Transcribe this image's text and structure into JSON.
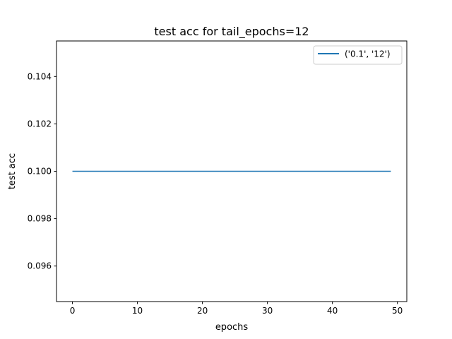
{
  "chart_data": {
    "type": "line",
    "title": "test acc for tail_epochs=12",
    "xlabel": "epochs",
    "ylabel": "test acc",
    "xlim": [
      -2.45,
      51.45
    ],
    "ylim": [
      0.0945,
      0.1055
    ],
    "xticks": [
      0,
      10,
      20,
      30,
      40,
      50
    ],
    "xtick_labels": [
      "0",
      "10",
      "20",
      "30",
      "40",
      "50"
    ],
    "yticks": [
      0.096,
      0.098,
      0.1,
      0.102,
      0.104
    ],
    "ytick_labels": [
      "0.096",
      "0.098",
      "0.100",
      "0.102",
      "0.104"
    ],
    "grid": false,
    "legend_position": "top-right",
    "series": [
      {
        "name": "('0.1', '12')",
        "color": "#1f77b4",
        "x": [
          0,
          49
        ],
        "y": [
          0.1,
          0.1
        ]
      }
    ]
  }
}
